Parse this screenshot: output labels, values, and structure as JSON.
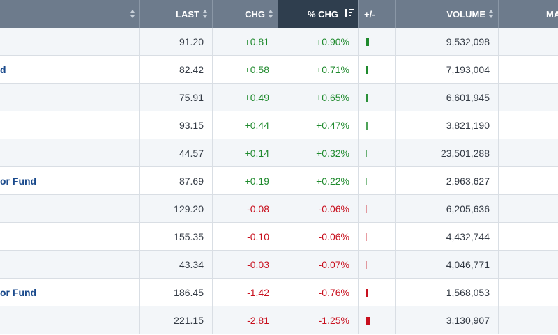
{
  "headers": {
    "symbol": "",
    "last": "LAST",
    "chg": "CHG",
    "pct_chg": "% CHG",
    "plus_minus": "+/-",
    "volume": "VOLUME",
    "ma": "MA"
  },
  "colors": {
    "header_bg": "#6d7b8c",
    "active_header": "#2f3e4e",
    "positive": "#1f8a2d",
    "negative": "#c8101e",
    "link": "#1a4a8c"
  },
  "rows": [
    {
      "name": "",
      "last": "91.20",
      "chg": "+0.81",
      "pct": "+0.90%",
      "dir": "up",
      "mag": 0.9,
      "volume": "9,532,098"
    },
    {
      "name": "d",
      "last": "82.42",
      "chg": "+0.58",
      "pct": "+0.71%",
      "dir": "up",
      "mag": 0.71,
      "volume": "7,193,004"
    },
    {
      "name": "",
      "last": "75.91",
      "chg": "+0.49",
      "pct": "+0.65%",
      "dir": "up",
      "mag": 0.65,
      "volume": "6,601,945"
    },
    {
      "name": "",
      "last": "93.15",
      "chg": "+0.44",
      "pct": "+0.47%",
      "dir": "up",
      "mag": 0.47,
      "volume": "3,821,190"
    },
    {
      "name": "",
      "last": "44.57",
      "chg": "+0.14",
      "pct": "+0.32%",
      "dir": "up",
      "mag": 0.32,
      "volume": "23,501,288"
    },
    {
      "name": "or Fund",
      "last": "87.69",
      "chg": "+0.19",
      "pct": "+0.22%",
      "dir": "up",
      "mag": 0.22,
      "volume": "2,963,627"
    },
    {
      "name": "",
      "last": "129.20",
      "chg": "-0.08",
      "pct": "-0.06%",
      "dir": "down",
      "mag": 0.06,
      "volume": "6,205,636"
    },
    {
      "name": "",
      "last": "155.35",
      "chg": "-0.10",
      "pct": "-0.06%",
      "dir": "down",
      "mag": 0.06,
      "volume": "4,432,744"
    },
    {
      "name": "",
      "last": "43.34",
      "chg": "-0.03",
      "pct": "-0.07%",
      "dir": "down",
      "mag": 0.07,
      "volume": "4,046,771"
    },
    {
      "name": "or Fund",
      "last": "186.45",
      "chg": "-1.42",
      "pct": "-0.76%",
      "dir": "down",
      "mag": 0.76,
      "volume": "1,568,053"
    },
    {
      "name": "",
      "last": "221.15",
      "chg": "-2.81",
      "pct": "-1.25%",
      "dir": "down",
      "mag": 1.25,
      "volume": "3,130,907"
    }
  ]
}
